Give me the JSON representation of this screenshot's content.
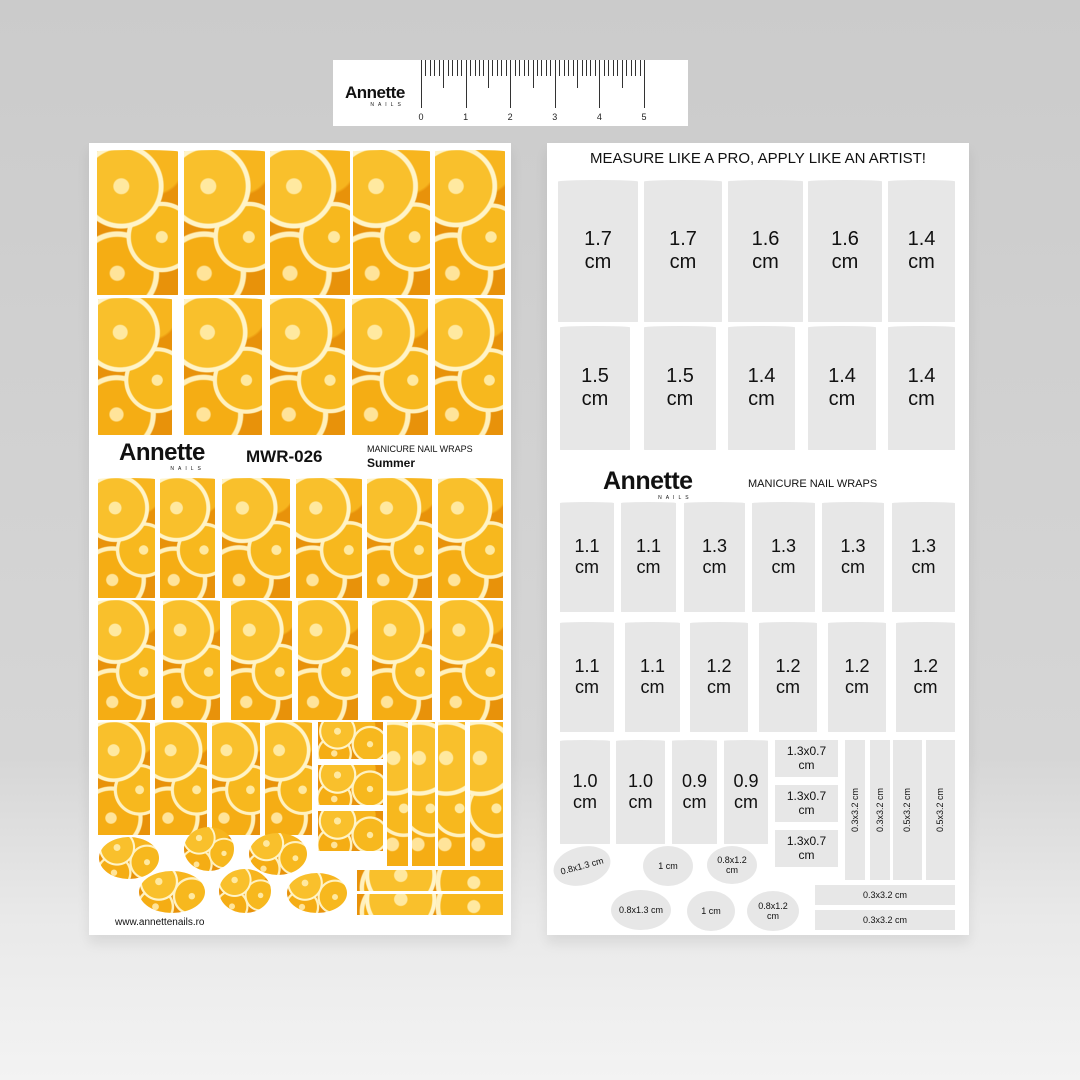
{
  "ruler": {
    "brand": "Annette",
    "sub": "NAILS",
    "numbers": [
      "0",
      "1",
      "2",
      "3",
      "4",
      "5"
    ]
  },
  "left_sheet": {
    "brand": "Annette",
    "brand_sub": "NAILS",
    "code": "MWR-026",
    "product": "MANICURE NAIL WRAPS",
    "collection": "Summer",
    "website": "www.annettenails.ro",
    "pattern": "orange-slices"
  },
  "right_sheet": {
    "headline": "MEASURE LIKE A PRO, APPLY LIKE AN ARTIST!",
    "brand": "Annette",
    "brand_sub": "NAILS",
    "product": "MANICURE NAIL WRAPS",
    "row1": [
      "1.7",
      "1.7",
      "1.6",
      "1.6",
      "1.4"
    ],
    "row2": [
      "1.5",
      "1.5",
      "1.4",
      "1.4",
      "1.4"
    ],
    "row3": [
      "1.1",
      "1.1",
      "1.3",
      "1.3",
      "1.3",
      "1.3"
    ],
    "row4": [
      "1.1",
      "1.1",
      "1.2",
      "1.2",
      "1.2",
      "1.2"
    ],
    "row5": [
      "1.0",
      "1.0",
      "0.9",
      "0.9"
    ],
    "unit": "cm",
    "rects": [
      "1.3x0.7 cm",
      "1.3x0.7 cm",
      "1.3x0.7 cm"
    ],
    "vstrips": [
      "0.3x3.2 cm",
      "0.3x3.2 cm",
      "0.5x3.2 cm",
      "0.5x3.2 cm"
    ],
    "hstrips": [
      "0.3x3.2 cm",
      "0.3x3.2 cm"
    ],
    "ovals": [
      "0.8x1.3 cm",
      "1 cm",
      "0.8x1.2 cm",
      "0.8x1.3 cm",
      "1 cm",
      "0.8x1.2 cm"
    ]
  },
  "colors": {
    "background": "#d0d0d0",
    "sheet": "#ffffff",
    "template": "#e7e7e7",
    "orange": "#f2a20c"
  }
}
